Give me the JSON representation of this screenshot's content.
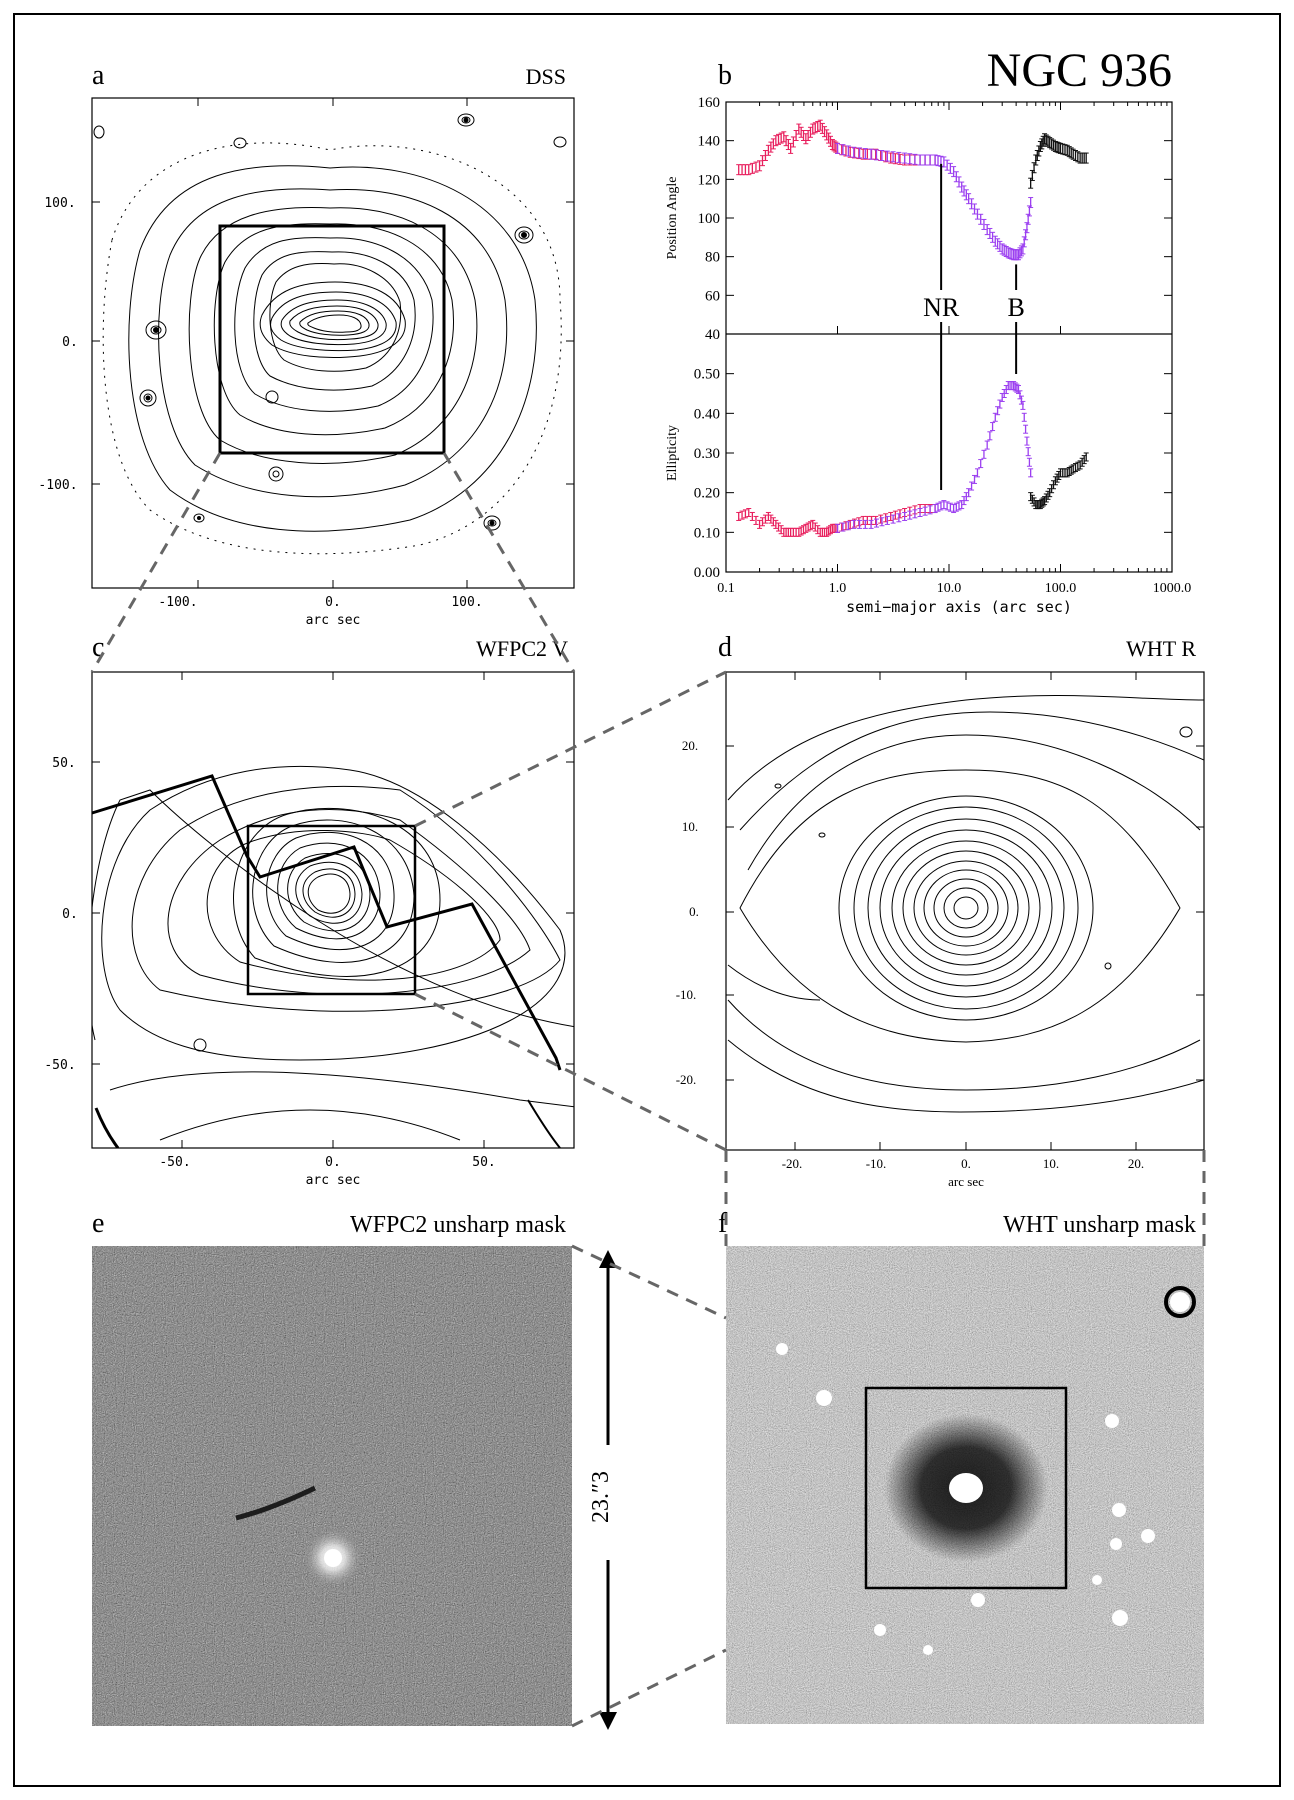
{
  "figure": {
    "title": "NGC 936",
    "panels": {
      "a": {
        "letter": "a",
        "label": "DSS",
        "xlabel": "arc sec",
        "xticks": [
          "-100.",
          "0.",
          "100."
        ],
        "yticks": [
          "100.",
          "0.",
          "-100."
        ]
      },
      "b": {
        "letter": "b"
      },
      "c": {
        "letter": "c",
        "label": "WFPC2 V",
        "xlabel": "arc sec",
        "xticks": [
          "-50.",
          "0.",
          "50."
        ],
        "yticks": [
          "50.",
          "0.",
          "-50."
        ]
      },
      "d": {
        "letter": "d",
        "label": "WHT R",
        "xlabel": "arc sec",
        "xticks": [
          "-20.",
          "-10.",
          "0.",
          "10.",
          "20."
        ],
        "yticks": [
          "20.",
          "10.",
          "0.",
          "-10.",
          "-20."
        ]
      },
      "e": {
        "letter": "e",
        "label": "WFPC2 unsharp mask"
      },
      "f": {
        "letter": "f",
        "label": "WHT unsharp mask"
      }
    },
    "scale_label": "23.″3",
    "colors": {
      "inner": "#e8205e",
      "middle": "#9b3ff0",
      "outer": "#111111"
    }
  },
  "chart_data": {
    "type": "scatter",
    "x_scale": "log",
    "xlabel": "semi−major axis (arc sec)",
    "xlim": [
      0.1,
      1000.0
    ],
    "xticks": [
      "0.1",
      "1.0",
      "10.0",
      "100.0",
      "1000.0"
    ],
    "panels": [
      {
        "ylabel": "Position Angle",
        "ylim": [
          40,
          160
        ],
        "yticks": [
          "160",
          "140",
          "120",
          "100",
          "80",
          "60",
          "40"
        ],
        "series": [
          {
            "color": "#e8205e",
            "x": [
              0.13,
              0.16,
              0.2,
              0.24,
              0.28,
              0.33,
              0.38,
              0.45,
              0.52,
              0.6,
              0.7,
              0.8,
              0.9,
              1.0,
              1.3,
              1.7,
              2.2,
              3.0,
              4.0,
              5.5,
              7.5
            ],
            "y": [
              125,
              125,
              127,
              135,
              140,
              142,
              136,
              146,
              141,
              146,
              148,
              143,
              138,
              136,
              134,
              133,
              133,
              131,
              130,
              130,
              130
            ]
          },
          {
            "color": "#9b3ff0",
            "x": [
              1.0,
              1.4,
              2.0,
              2.8,
              4.0,
              5.5,
              7.5,
              9,
              11,
              13,
              15,
              18,
              22,
              26,
              30,
              34,
              38,
              42,
              46,
              50,
              54
            ],
            "y": [
              136,
              134,
              133,
              132,
              131,
              130,
              130,
              129,
              124,
              116,
              110,
              102,
              94,
              88,
              84,
              82,
              81,
              81,
              84,
              95,
              108
            ]
          },
          {
            "color": "#111111",
            "x": [
              54,
              60,
              66,
              72,
              80,
              90,
              100,
              115,
              130,
              150,
              170
            ],
            "y": [
              118,
              130,
              137,
              141,
              139,
              137,
              136,
              135,
              133,
              131,
              131
            ]
          }
        ],
        "markers": [
          {
            "label": "NR",
            "x": 8.5
          },
          {
            "label": "B",
            "x": 40
          }
        ]
      },
      {
        "ylabel": "Ellipticity",
        "ylim": [
          0.0,
          0.6
        ],
        "yticks": [
          "0.50",
          "0.40",
          "0.30",
          "0.20",
          "0.10",
          "0.00"
        ],
        "series": [
          {
            "color": "#e8205e",
            "x": [
              0.13,
              0.16,
              0.2,
              0.24,
              0.28,
              0.33,
              0.38,
              0.45,
              0.52,
              0.6,
              0.7,
              0.8,
              0.9,
              1.0,
              1.3,
              1.7,
              2.2,
              3.0,
              4.0,
              5.5,
              7.5
            ],
            "y": [
              0.14,
              0.15,
              0.12,
              0.14,
              0.12,
              0.1,
              0.1,
              0.1,
              0.11,
              0.12,
              0.1,
              0.1,
              0.11,
              0.11,
              0.12,
              0.13,
              0.13,
              0.14,
              0.15,
              0.16,
              0.16
            ]
          },
          {
            "color": "#9b3ff0",
            "x": [
              1.0,
              1.4,
              2.0,
              2.8,
              4.0,
              5.5,
              7.5,
              9,
              11,
              13,
              15,
              18,
              22,
              26,
              30,
              34,
              38,
              42,
              46,
              50,
              54
            ],
            "y": [
              0.11,
              0.12,
              0.12,
              0.13,
              0.14,
              0.15,
              0.16,
              0.17,
              0.16,
              0.17,
              0.2,
              0.25,
              0.32,
              0.39,
              0.44,
              0.47,
              0.47,
              0.46,
              0.42,
              0.33,
              0.25
            ]
          },
          {
            "color": "#111111",
            "x": [
              54,
              60,
              66,
              72,
              80,
              90,
              100,
              115,
              130,
              150,
              170
            ],
            "y": [
              0.19,
              0.17,
              0.17,
              0.18,
              0.2,
              0.23,
              0.25,
              0.25,
              0.26,
              0.27,
              0.29
            ]
          }
        ]
      }
    ]
  }
}
